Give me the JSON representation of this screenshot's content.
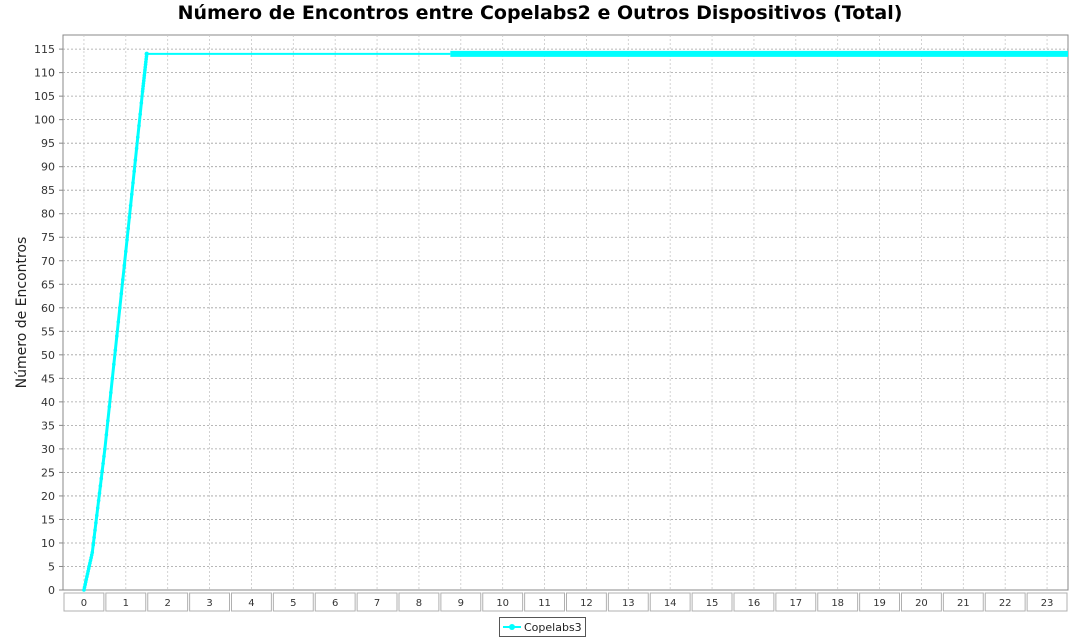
{
  "chart_data": {
    "type": "line",
    "title": "Número de Encontros entre Copelabs2 e Outros Dispositivos (Total)",
    "xlabel": "",
    "ylabel": "Número de Encontros",
    "categories": [
      "0",
      "1",
      "2",
      "3",
      "4",
      "5",
      "6",
      "7",
      "8",
      "9",
      "10",
      "11",
      "12",
      "13",
      "14",
      "15",
      "16",
      "17",
      "18",
      "19",
      "20",
      "21",
      "22",
      "23"
    ],
    "ylim": [
      0,
      118
    ],
    "yticks": [
      0,
      5,
      10,
      15,
      20,
      25,
      30,
      35,
      40,
      45,
      50,
      55,
      60,
      65,
      70,
      75,
      80,
      85,
      90,
      95,
      100,
      105,
      110,
      115
    ],
    "grid": true,
    "legend_position": "bottom",
    "series": [
      {
        "name": "Copelabs3",
        "color": "#00ffff",
        "points": [
          {
            "x": 0,
            "y": 0
          },
          {
            "x": 0.2,
            "y": 8
          },
          {
            "x": 0.5,
            "y": 30
          },
          {
            "x": 1.0,
            "y": 72
          },
          {
            "x": 1.4,
            "y": 106
          },
          {
            "x": 1.5,
            "y": 114
          },
          {
            "x": 8.75,
            "y": 114
          },
          {
            "x": 23.5,
            "y": 114
          }
        ]
      }
    ]
  }
}
